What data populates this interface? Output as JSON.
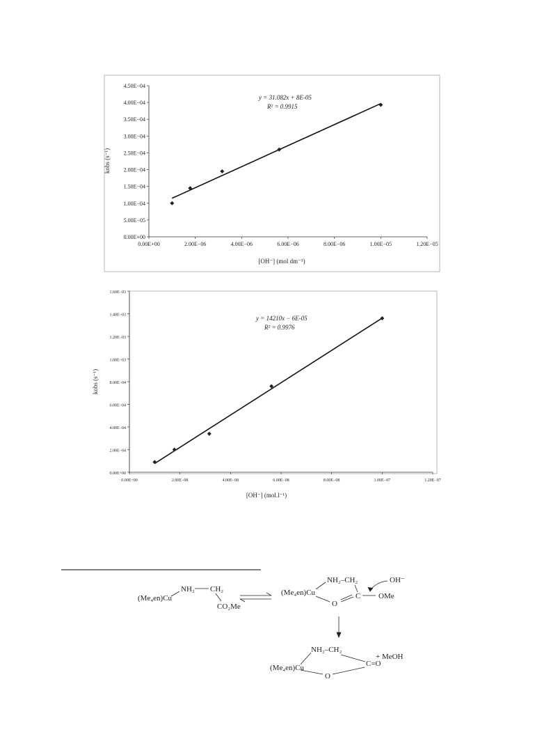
{
  "chart_data": [
    {
      "type": "scatter",
      "annotations": [
        "y = 31.082x + 8E-05",
        "R² = 0.9915"
      ],
      "x_label": "[OH⁻] (mol dm⁻³)",
      "y_label": "kobs (s⁻¹)",
      "x": [
        1e-06,
        1.78e-06,
        3.16e-06,
        5.62e-06,
        1e-05
      ],
      "values": [
        0.0001,
        0.000145,
        0.000195,
        0.00026,
        0.000393
      ],
      "color": "#222222",
      "trendline": true,
      "xlim": [
        0,
        1.2e-05
      ],
      "xticks": [
        {
          "value": 0,
          "label": "0.00E+00"
        },
        {
          "value": 2e-06,
          "label": "2.00E−06"
        },
        {
          "value": 4e-06,
          "label": "4.00E−06"
        },
        {
          "value": 6e-06,
          "label": "6.00E−06"
        },
        {
          "value": 8e-06,
          "label": "8.00E−06"
        },
        {
          "value": 1e-05,
          "label": "1.00E−05"
        },
        {
          "value": 1.2e-05,
          "label": "1.20E−05"
        }
      ],
      "ylim": [
        0,
        0.00045
      ],
      "yticks": [
        {
          "value": 0,
          "label": "0.00E+00"
        },
        {
          "value": 5e-05,
          "label": "5.00E−05"
        },
        {
          "value": 0.0001,
          "label": "1.00E−04"
        },
        {
          "value": 0.00015,
          "label": "1.50E−04"
        },
        {
          "value": 0.0002,
          "label": "2.00E−04"
        },
        {
          "value": 0.00025,
          "label": "2.50E−04"
        },
        {
          "value": 0.0003,
          "label": "3.00E−04"
        },
        {
          "value": 0.00035,
          "label": "3.50E−04"
        },
        {
          "value": 0.0004,
          "label": "4.00E−04"
        },
        {
          "value": 0.00045,
          "label": "4.50E−04"
        }
      ]
    },
    {
      "type": "scatter",
      "annotations": [
        "y = 14210x − 6E-05",
        "R² = 0.9976"
      ],
      "x_label": "[OH⁻] (mol.l⁻¹)",
      "y_label": "kobs (s⁻¹)",
      "x": [
        1e-08,
        1.78e-08,
        3.16e-08,
        5.62e-08,
        1e-07
      ],
      "values": [
        9e-05,
        0.0002,
        0.00034,
        0.00076,
        0.00136
      ],
      "color": "#222222",
      "trendline": true,
      "xlim": [
        0,
        1.2e-07
      ],
      "xticks": [
        {
          "value": 0,
          "label": "0.00E+00"
        },
        {
          "value": 2e-08,
          "label": "2.00E−08"
        },
        {
          "value": 4e-08,
          "label": "4.00E−08"
        },
        {
          "value": 6e-08,
          "label": "6.00E−08"
        },
        {
          "value": 8e-08,
          "label": "8.00E−08"
        },
        {
          "value": 1e-07,
          "label": "1.00E−07"
        },
        {
          "value": 1.2e-07,
          "label": "1.20E−07"
        }
      ],
      "ylim": [
        0,
        0.0016
      ],
      "yticks": [
        {
          "value": 0,
          "label": "0.00E+00"
        },
        {
          "value": 0.0002,
          "label": "2.00E−04"
        },
        {
          "value": 0.0004,
          "label": "4.00E−04"
        },
        {
          "value": 0.0006,
          "label": "6.00E−04"
        },
        {
          "value": 0.0008,
          "label": "8.00E−04"
        },
        {
          "value": 0.001,
          "label": "1.00E−03"
        },
        {
          "value": 0.0012,
          "label": "1.20E−03"
        },
        {
          "value": 0.0014,
          "label": "1.40E−03"
        },
        {
          "value": 0.0016,
          "label": "1.60E−03"
        }
      ]
    }
  ],
  "scheme": {
    "labels": [
      "(Me₄en)Cu",
      "NH₂",
      "CH₂",
      "CO₂Me",
      "(Me₄en)Cu",
      "NH₂–CH₂",
      "OH⁻",
      "O",
      "C",
      "OMe",
      "NH₂–CH₂",
      "(Me₄en)Cu",
      "O",
      "C=O",
      "+ MeOH"
    ]
  }
}
